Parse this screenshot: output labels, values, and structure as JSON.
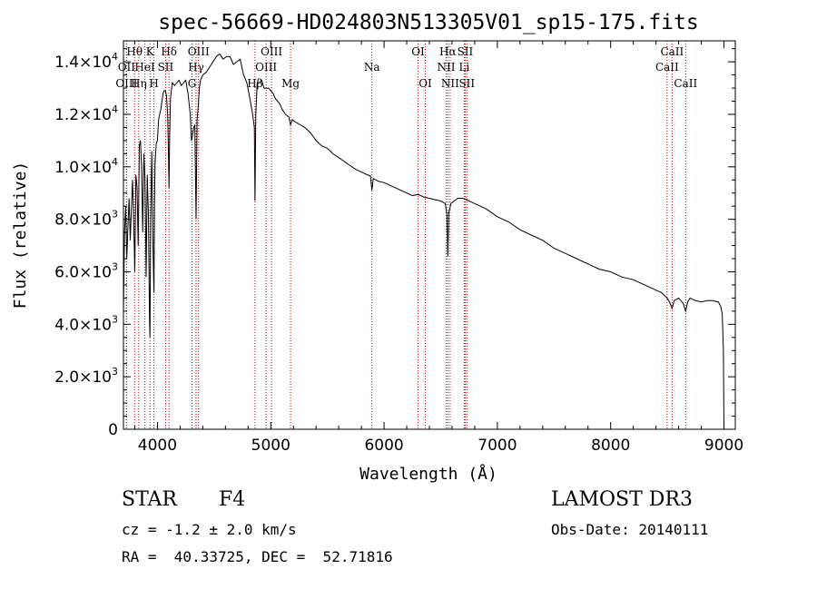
{
  "chart_data": {
    "type": "line",
    "title": "spec-56669-HD024803N513305V01_sp15-175.fits",
    "xlabel": "Wavelength (Å)",
    "ylabel": "Flux (relative)",
    "xlim": [
      3700,
      9100
    ],
    "ylim": [
      0,
      14800
    ],
    "x_ticks": [
      4000,
      5000,
      6000,
      7000,
      8000,
      9000
    ],
    "x_tick_labels": [
      "4000",
      "5000",
      "6000",
      "7000",
      "8000",
      "9000"
    ],
    "y_ticks": [
      0,
      2000,
      4000,
      6000,
      8000,
      10000,
      12000,
      14000
    ],
    "y_tick_labels": [
      {
        "base": "0",
        "exp": ""
      },
      {
        "base": "2.0×10",
        "exp": "3"
      },
      {
        "base": "4.0×10",
        "exp": "3"
      },
      {
        "base": "6.0×10",
        "exp": "3"
      },
      {
        "base": "8.0×10",
        "exp": "3"
      },
      {
        "base": "1.0×10",
        "exp": "4"
      },
      {
        "base": "1.2×10",
        "exp": "4"
      },
      {
        "base": "1.4×10",
        "exp": "4"
      }
    ],
    "line_color": "#000000",
    "marker_color": "#cc0000",
    "spectral_lines": [
      {
        "label": "Hθ",
        "x": 3798,
        "row": 1
      },
      {
        "label": "OII",
        "x": 3727,
        "row": 2
      },
      {
        "label": "OIII",
        "x": 3727,
        "row": 3
      },
      {
        "label": "K",
        "x": 3934,
        "row": 1
      },
      {
        "label": "H",
        "x": 3969,
        "row": 3
      },
      {
        "label": "HeI",
        "x": 3889,
        "row": 2
      },
      {
        "label": "Hη",
        "x": 3835,
        "row": 3
      },
      {
        "label": "Hδ",
        "x": 4102,
        "row": 1
      },
      {
        "label": "SII",
        "x": 4072,
        "row": 2
      },
      {
        "label": "OIII",
        "x": 4363,
        "row": 1
      },
      {
        "label": "Hγ",
        "x": 4341,
        "row": 2
      },
      {
        "label": "G",
        "x": 4305,
        "row": 3
      },
      {
        "label": "OIII",
        "x": 5007,
        "row": 1
      },
      {
        "label": "OIII",
        "x": 4959,
        "row": 2
      },
      {
        "label": "Hβ",
        "x": 4861,
        "row": 3
      },
      {
        "label": "Mg",
        "x": 5175,
        "row": 3
      },
      {
        "label": "Na",
        "x": 5893,
        "row": 2
      },
      {
        "label": "OI",
        "x": 6300,
        "row": 1
      },
      {
        "label": "OI",
        "x": 6364,
        "row": 3
      },
      {
        "label": "Hα",
        "x": 6563,
        "row": 1
      },
      {
        "label": "NII",
        "x": 6548,
        "row": 2
      },
      {
        "label": "NII",
        "x": 6583,
        "row": 3
      },
      {
        "label": "SII",
        "x": 6716,
        "row": 1
      },
      {
        "label": "Li",
        "x": 6708,
        "row": 2
      },
      {
        "label": "SII",
        "x": 6731,
        "row": 3
      },
      {
        "label": "CaII",
        "x": 8542,
        "row": 1
      },
      {
        "label": "CaII",
        "x": 8498,
        "row": 2
      },
      {
        "label": "CaII",
        "x": 8662,
        "row": 3
      }
    ],
    "series": [
      {
        "name": "spectrum",
        "x": [
          3700,
          3710,
          3720,
          3730,
          3740,
          3750,
          3760,
          3770,
          3780,
          3790,
          3800,
          3810,
          3820,
          3830,
          3840,
          3850,
          3860,
          3870,
          3880,
          3890,
          3900,
          3910,
          3920,
          3930,
          3934,
          3940,
          3950,
          3960,
          3969,
          3975,
          3980,
          3990,
          4000,
          4010,
          4020,
          4030,
          4040,
          4050,
          4060,
          4070,
          4080,
          4090,
          4095,
          4102,
          4108,
          4115,
          4130,
          4150,
          4170,
          4190,
          4210,
          4230,
          4250,
          4270,
          4290,
          4300,
          4310,
          4320,
          4330,
          4341,
          4350,
          4360,
          4370,
          4380,
          4400,
          4430,
          4460,
          4490,
          4520,
          4550,
          4580,
          4610,
          4640,
          4670,
          4700,
          4730,
          4760,
          4790,
          4820,
          4840,
          4855,
          4861,
          4868,
          4880,
          4900,
          4920,
          4940,
          4960,
          4980,
          5000,
          5020,
          5040,
          5060,
          5080,
          5100,
          5130,
          5160,
          5175,
          5190,
          5220,
          5260,
          5300,
          5350,
          5400,
          5450,
          5500,
          5550,
          5600,
          5650,
          5700,
          5750,
          5800,
          5850,
          5880,
          5893,
          5905,
          5950,
          6000,
          6050,
          6100,
          6150,
          6200,
          6250,
          6300,
          6350,
          6400,
          6450,
          6500,
          6540,
          6555,
          6563,
          6572,
          6590,
          6620,
          6650,
          6700,
          6750,
          6800,
          6850,
          6900,
          7000,
          7100,
          7200,
          7300,
          7400,
          7500,
          7600,
          7700,
          7800,
          7900,
          8000,
          8100,
          8200,
          8300,
          8400,
          8450,
          8498,
          8520,
          8542,
          8560,
          8600,
          8640,
          8662,
          8680,
          8700,
          8750,
          8800,
          8850,
          8900,
          8950,
          8970,
          8985,
          8995,
          9000
        ],
        "y": [
          4500,
          7500,
          8500,
          6500,
          7800,
          8800,
          7200,
          8400,
          9500,
          8000,
          6000,
          9700,
          9200,
          7000,
          10800,
          11000,
          10000,
          7500,
          10500,
          9600,
          5800,
          9700,
          8200,
          4200,
          3500,
          8000,
          10600,
          7000,
          5200,
          9000,
          10200,
          10900,
          11000,
          11800,
          12000,
          12200,
          12500,
          12800,
          12900,
          12900,
          12700,
          12000,
          11000,
          9200,
          11200,
          12600,
          13200,
          13100,
          13200,
          13300,
          13100,
          13200,
          13300,
          12800,
          12000,
          11000,
          11200,
          11500,
          11600,
          8000,
          11800,
          12300,
          13000,
          13300,
          13500,
          13600,
          13800,
          14000,
          14200,
          14300,
          14100,
          14200,
          14200,
          13900,
          14000,
          14100,
          13500,
          13200,
          12500,
          12000,
          11500,
          8700,
          12000,
          13200,
          13200,
          13300,
          13000,
          13000,
          13000,
          12900,
          12800,
          12600,
          12500,
          12400,
          12200,
          12000,
          11900,
          11600,
          11800,
          11700,
          11600,
          11500,
          11300,
          11000,
          10800,
          10700,
          10500,
          10350,
          10200,
          10050,
          9900,
          9800,
          9700,
          9650,
          9100,
          9550,
          9450,
          9400,
          9300,
          9200,
          9100,
          9000,
          8900,
          8950,
          8850,
          8800,
          8750,
          8700,
          8600,
          8200,
          6600,
          8250,
          8600,
          8700,
          8800,
          8800,
          8700,
          8600,
          8500,
          8400,
          8100,
          7900,
          7600,
          7400,
          7200,
          6900,
          6700,
          6500,
          6300,
          6100,
          6000,
          5800,
          5700,
          5500,
          5300,
          5200,
          5000,
          4850,
          4600,
          4900,
          5000,
          4800,
          4500,
          4850,
          5000,
          4900,
          4850,
          4900,
          4900,
          4850,
          4700,
          4400,
          3000,
          0
        ]
      }
    ]
  },
  "info": {
    "object_class": "STAR",
    "subclass": "F4",
    "survey": "LAMOST DR3",
    "cz_line": "cz = -1.2 ± 2.0 km/s",
    "obs_date": "Obs-Date: 20140111",
    "radec_line": "RA =  40.33725, DEC =  52.71816"
  }
}
